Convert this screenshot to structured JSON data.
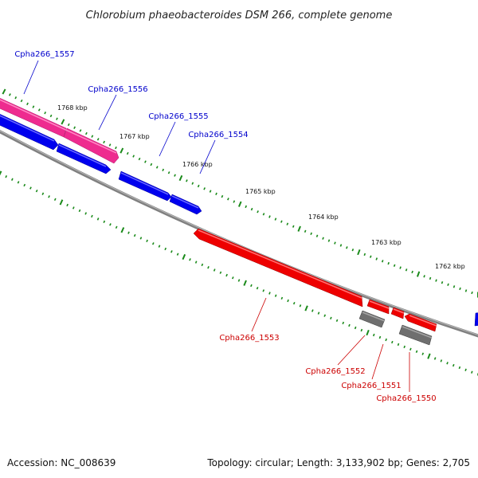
{
  "title": "Chlorobium phaeobacteroides DSM 266, complete genome",
  "footer": {
    "accession": "Accession: NC_008639",
    "summary": "Topology: circular; Length: 3,133,902 bp; Genes: 2,705"
  },
  "colors": {
    "forward_gene": "#0000ee",
    "forward_gene_highlight": "#ee2b8f",
    "reverse_gene": "#ee0000",
    "other_feature": "#6f6f6f",
    "backbone": "#808080",
    "tick": "#1a8a1a",
    "forward_label": "#0000cc",
    "reverse_label": "#cc0000"
  },
  "scale": {
    "ticks": [
      "1768 kbp",
      "1767 kbp",
      "1766 kbp",
      "1765 kbp",
      "1764 kbp",
      "1763 kbp",
      "1762 kbp"
    ]
  },
  "genes_forward": [
    {
      "label": "Cpha266_1557"
    },
    {
      "label": "Cpha266_1556"
    },
    {
      "label": "Cpha266_1555"
    },
    {
      "label": "Cpha266_1554"
    }
  ],
  "genes_reverse": [
    {
      "label": "Cpha266_1553"
    },
    {
      "label": "Cpha266_1552"
    },
    {
      "label": "Cpha266_1551"
    },
    {
      "label": "Cpha266_1550"
    }
  ]
}
